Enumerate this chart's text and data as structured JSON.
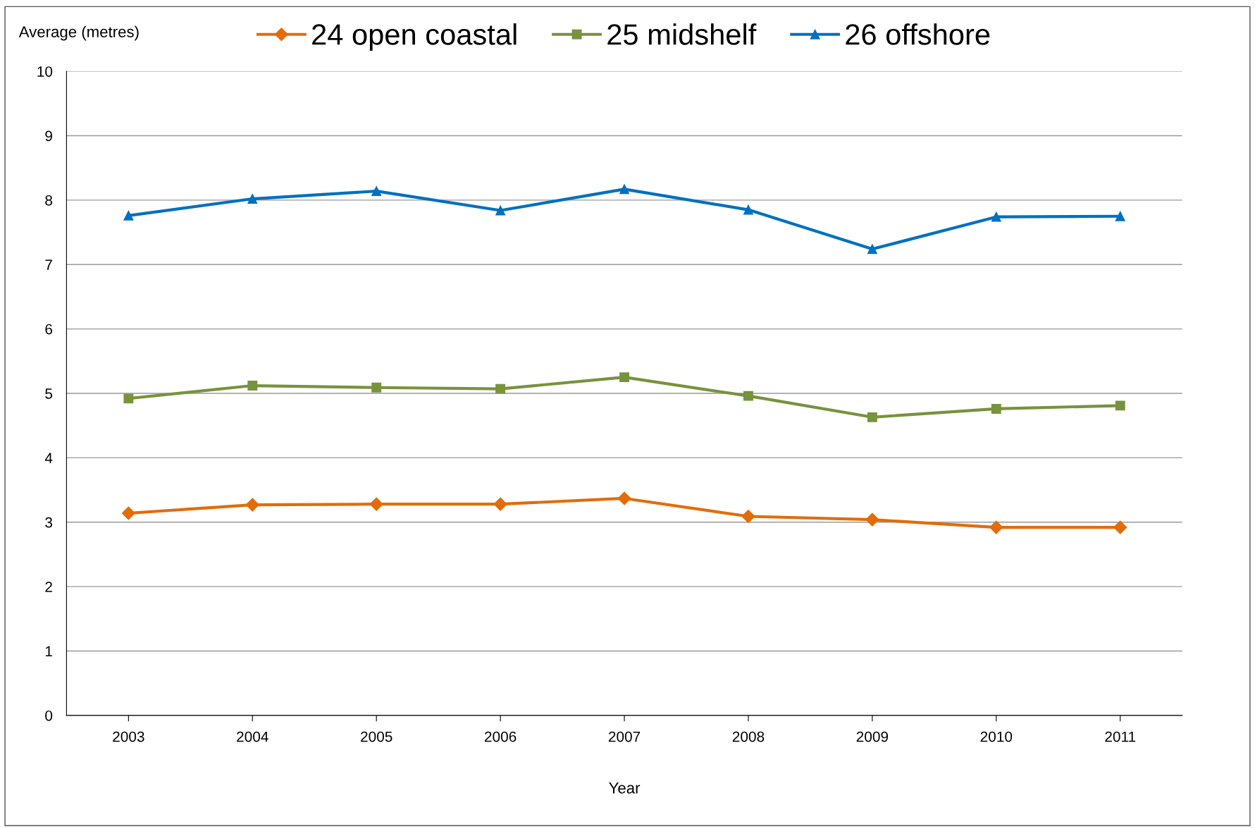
{
  "chart_data": {
    "type": "line",
    "ylabel": "Average (metres)",
    "xlabel": "Year",
    "categories": [
      "2003",
      "2004",
      "2005",
      "2006",
      "2007",
      "2008",
      "2009",
      "2010",
      "2011"
    ],
    "series": [
      {
        "name": "24 open coastal",
        "color": "#e36c0a",
        "marker": "diamond",
        "values": [
          3.14,
          3.27,
          3.28,
          3.28,
          3.37,
          3.09,
          3.04,
          2.92,
          2.92
        ]
      },
      {
        "name": "25 midshelf",
        "color": "#77933c",
        "marker": "square",
        "values": [
          4.92,
          5.12,
          5.09,
          5.07,
          5.25,
          4.96,
          4.63,
          4.76,
          4.81
        ]
      },
      {
        "name": "26 offshore",
        "color": "#0070c0",
        "marker": "triangle",
        "values": [
          7.76,
          8.02,
          8.14,
          7.84,
          8.17,
          7.85,
          7.24,
          7.74,
          7.75
        ]
      }
    ],
    "ylim": [
      0,
      10
    ],
    "yticks": [
      0,
      1,
      2,
      3,
      4,
      5,
      6,
      7,
      8,
      9,
      10
    ],
    "grid": "y",
    "legend": "top",
    "line_style": "solid"
  }
}
